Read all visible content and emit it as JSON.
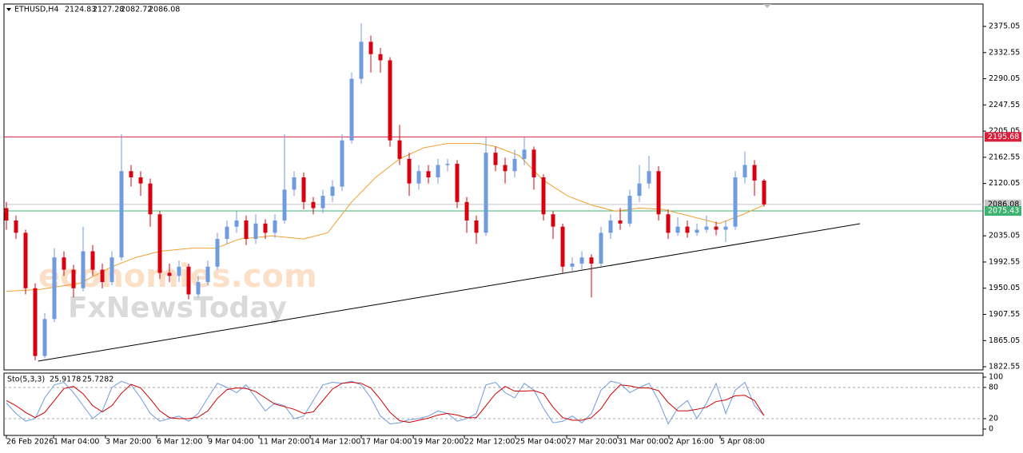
{
  "chart_data": {
    "type": "candlestick",
    "symbol": "ETHUSD,H4",
    "watermark": [
      "economies.com",
      "FxNewsToday"
    ],
    "up_color": "#6f9be0",
    "down_color": "#d9000f",
    "xlim": [
      -0.25,
      101.83
    ],
    "ylim": [
      1817.4,
      2411.4
    ],
    "yticks": [
      1822.55,
      1865.05,
      1907.55,
      1950.05,
      1992.55,
      2035.05,
      2120.05,
      2162.55,
      2205.05,
      2247.55,
      2290.05,
      2332.55,
      2375.05
    ],
    "xticks": [
      {
        "value": 0,
        "label": "26 Feb 2026"
      },
      {
        "value": 4.92,
        "label": "1 Mar 04:00"
      },
      {
        "value": 10.33,
        "label": "3 Mar 20:00"
      },
      {
        "value": 15.67,
        "label": "6 Mar 12:00"
      },
      {
        "value": 21,
        "label": "9 Mar 04:00"
      },
      {
        "value": 26.33,
        "label": "11 Mar 20:00"
      },
      {
        "value": 31.67,
        "label": "14 Mar 12:00"
      },
      {
        "value": 37,
        "label": "17 Mar 04:00"
      },
      {
        "value": 42.42,
        "label": "19 Mar 20:00"
      },
      {
        "value": 47.75,
        "label": "22 Mar 12:00"
      },
      {
        "value": 53.08,
        "label": "25 Mar 04:00"
      },
      {
        "value": 58.42,
        "label": "27 Mar 20:00"
      },
      {
        "value": 63.75,
        "label": "31 Mar 00:00"
      },
      {
        "value": 69.08,
        "label": "2 Apr 16:00"
      },
      {
        "value": 74.42,
        "label": "5 Apr 08:00"
      }
    ],
    "candles": [
      [
        2080,
        2090,
        2045,
        2060
      ],
      [
        2060,
        2068,
        2030,
        2040
      ],
      [
        2040,
        2045,
        1940,
        1950
      ],
      [
        1950,
        1958,
        1833,
        1840
      ],
      [
        1840,
        1910,
        1836,
        1900
      ],
      [
        1900,
        2015,
        1895,
        2000
      ],
      [
        2000,
        2010,
        1970,
        1980
      ],
      [
        1980,
        1988,
        1935,
        1950
      ],
      [
        1950,
        2050,
        1945,
        2010
      ],
      [
        2010,
        2020,
        1970,
        1980
      ],
      [
        1980,
        1990,
        1950,
        1960
      ],
      [
        1960,
        2010,
        1955,
        2000
      ],
      [
        2000,
        2200,
        1995,
        2140
      ],
      [
        2140,
        2150,
        2115,
        2130
      ],
      [
        2130,
        2140,
        2100,
        2120
      ],
      [
        2120,
        2128,
        2050,
        2070
      ],
      [
        2070,
        2075,
        1965,
        1975
      ],
      [
        1975,
        1990,
        1960,
        1970
      ],
      [
        1970,
        1995,
        1960,
        1985
      ],
      [
        1985,
        1990,
        1932,
        1940
      ],
      [
        1940,
        1970,
        1935,
        1960
      ],
      [
        1960,
        1995,
        1955,
        1985
      ],
      [
        1985,
        2040,
        1980,
        2030
      ],
      [
        2030,
        2060,
        2022,
        2050
      ],
      [
        2050,
        2075,
        2040,
        2060
      ],
      [
        2060,
        2068,
        2020,
        2030
      ],
      [
        2030,
        2070,
        2022,
        2055
      ],
      [
        2055,
        2062,
        2030,
        2040
      ],
      [
        2040,
        2070,
        2032,
        2060
      ],
      [
        2060,
        2200,
        2055,
        2110
      ],
      [
        2110,
        2140,
        2100,
        2130
      ],
      [
        2130,
        2138,
        2078,
        2090
      ],
      [
        2090,
        2098,
        2070,
        2080
      ],
      [
        2080,
        2110,
        2072,
        2100
      ],
      [
        2100,
        2125,
        2090,
        2115
      ],
      [
        2115,
        2200,
        2108,
        2190
      ],
      [
        2190,
        2300,
        2185,
        2290
      ],
      [
        2290,
        2380,
        2282,
        2350
      ],
      [
        2350,
        2360,
        2300,
        2330
      ],
      [
        2330,
        2340,
        2300,
        2320
      ],
      [
        2320,
        2325,
        2180,
        2190
      ],
      [
        2190,
        2215,
        2150,
        2160
      ],
      [
        2160,
        2170,
        2100,
        2120
      ],
      [
        2120,
        2150,
        2110,
        2140
      ],
      [
        2140,
        2150,
        2120,
        2130
      ],
      [
        2130,
        2160,
        2120,
        2150
      ],
      [
        2150,
        2160,
        2140,
        2152
      ],
      [
        2152,
        2158,
        2080,
        2090
      ],
      [
        2090,
        2098,
        2040,
        2060
      ],
      [
        2060,
        2068,
        2022,
        2040
      ],
      [
        2040,
        2195,
        2035,
        2170
      ],
      [
        2170,
        2180,
        2140,
        2150
      ],
      [
        2150,
        2162,
        2120,
        2140
      ],
      [
        2140,
        2175,
        2130,
        2160
      ],
      [
        2160,
        2195,
        2150,
        2175
      ],
      [
        2175,
        2180,
        2110,
        2130
      ],
      [
        2130,
        2135,
        2060,
        2070
      ],
      [
        2070,
        2075,
        2030,
        2050
      ],
      [
        2050,
        2055,
        1975,
        1985
      ],
      [
        1985,
        2000,
        1978,
        1990
      ],
      [
        1990,
        2010,
        1980,
        2000
      ],
      [
        2000,
        2005,
        1935,
        1990
      ],
      [
        1990,
        2050,
        1985,
        2040
      ],
      [
        2040,
        2070,
        2030,
        2060
      ],
      [
        2060,
        2080,
        2045,
        2055
      ],
      [
        2055,
        2110,
        2050,
        2100
      ],
      [
        2100,
        2150,
        2090,
        2120
      ],
      [
        2120,
        2165,
        2112,
        2140
      ],
      [
        2140,
        2148,
        2060,
        2070
      ],
      [
        2070,
        2078,
        2030,
        2040
      ],
      [
        2040,
        2065,
        2035,
        2050
      ],
      [
        2050,
        2060,
        2032,
        2040
      ],
      [
        2040,
        2055,
        2035,
        2045
      ],
      [
        2045,
        2068,
        2040,
        2050
      ],
      [
        2050,
        2058,
        2036,
        2045
      ],
      [
        2045,
        2060,
        2025,
        2050
      ],
      [
        2050,
        2140,
        2045,
        2130
      ],
      [
        2130,
        2172,
        2120,
        2150
      ],
      [
        2150,
        2158,
        2100,
        2124.83
      ],
      [
        2124.83,
        2127.28,
        2082.72,
        2086.08
      ]
    ],
    "ma": {
      "color": "#f0a030",
      "x": [
        0,
        3.5,
        7.67,
        11,
        13.5,
        16,
        19.33,
        21.83,
        24.33,
        27.67,
        31,
        33.5,
        36,
        38.5,
        41,
        43.5,
        46,
        49.33,
        51,
        53.5,
        56,
        58.5,
        61,
        63.5,
        66,
        68.5,
        71,
        74.33,
        76.83,
        79
      ],
      "values": [
        1945,
        1948,
        1958,
        1985,
        2000,
        2010,
        2015,
        2015,
        2030,
        2035,
        2030,
        2040,
        2090,
        2130,
        2160,
        2178,
        2185,
        2185,
        2180,
        2165,
        2125,
        2100,
        2085,
        2075,
        2080,
        2078,
        2068,
        2055,
        2070,
        2085
      ]
    },
    "trendline": {
      "color": "#000000",
      "x": [
        3.3,
        89
      ],
      "values": [
        1831.6,
        2054.7
      ]
    },
    "levels": [
      {
        "value": 2195.68,
        "color": "#d8203c",
        "text_color": "#ffffff"
      },
      {
        "value": 2086.08,
        "color": "#c8c8c8",
        "text_color": "#000000"
      },
      {
        "value": 2075.43,
        "color": "#3cb371",
        "text_color": "#ffffff"
      }
    ],
    "stochastic": {
      "label": "Sto(5,3,3)",
      "ylim": [
        -12.3,
        107.7
      ],
      "yticks": [
        0,
        20,
        80,
        100
      ],
      "levels": [
        20,
        80
      ],
      "k": {
        "color": "#6f9be0",
        "values": [
          50,
          30,
          15,
          20,
          60,
          85,
          90,
          70,
          45,
          20,
          35,
          80,
          92,
          85,
          60,
          30,
          15,
          20,
          25,
          15,
          30,
          60,
          88,
          80,
          70,
          85,
          60,
          35,
          50,
          45,
          20,
          25,
          55,
          85,
          90,
          88,
          92,
          85,
          60,
          25,
          10,
          12,
          18,
          20,
          25,
          35,
          30,
          15,
          20,
          30,
          85,
          90,
          70,
          60,
          88,
          75,
          40,
          12,
          15,
          25,
          12,
          30,
          75,
          92,
          88,
          70,
          80,
          88,
          55,
          10,
          40,
          55,
          20,
          50,
          88,
          30,
          75,
          90,
          45,
          25.9178
        ]
      },
      "d": {
        "color": "#d00000",
        "values": [
          55,
          45,
          32,
          22,
          32,
          55,
          78,
          82,
          68,
          45,
          33,
          45,
          69,
          86,
          79,
          58,
          35,
          22,
          20,
          20,
          23,
          35,
          59,
          76,
          79,
          78,
          72,
          60,
          48,
          43,
          38,
          30,
          33,
          55,
          77,
          88,
          90,
          88,
          79,
          57,
          32,
          16,
          13,
          17,
          21,
          27,
          30,
          27,
          22,
          22,
          45,
          68,
          82,
          73,
          73,
          74,
          68,
          42,
          22,
          17,
          17,
          22,
          39,
          66,
          85,
          83,
          79,
          79,
          74,
          51,
          35,
          35,
          38,
          42,
          53,
          56,
          64,
          65,
          55,
          25.7282
        ]
      }
    }
  }
}
